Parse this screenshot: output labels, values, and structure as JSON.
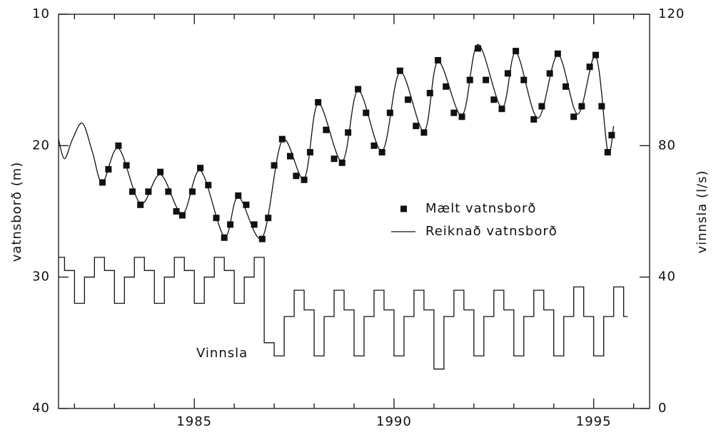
{
  "chart_data": {
    "type": "line",
    "xlim": [
      1981.6,
      1996.4
    ],
    "xticks": [
      1985,
      1990,
      1995
    ],
    "xminorticks": [
      1982,
      1983,
      1984,
      1986,
      1987,
      1988,
      1989,
      1991,
      1992,
      1993,
      1994,
      1996
    ],
    "ylim": [
      40,
      10
    ],
    "yticks": [
      10,
      20,
      30,
      40
    ],
    "y2lim": [
      0,
      120
    ],
    "y2ticks": [
      0,
      40,
      80,
      120
    ],
    "ylabel": "vatnsborð (m)",
    "y2label": "vinnsla (l/s)",
    "series": [
      {
        "name": "Mælt vatnsborð",
        "style": "markers",
        "color": "#111111",
        "x": [
          1982.7,
          1982.85,
          1983.1,
          1983.3,
          1983.45,
          1983.65,
          1983.85,
          1984.15,
          1984.35,
          1984.55,
          1984.7,
          1984.95,
          1985.15,
          1985.35,
          1985.55,
          1985.75,
          1985.9,
          1986.1,
          1986.3,
          1986.5,
          1986.7,
          1986.85,
          1987.0,
          1987.2,
          1987.4,
          1987.55,
          1987.75,
          1987.9,
          1988.1,
          1988.3,
          1988.5,
          1988.7,
          1988.85,
          1989.1,
          1989.3,
          1989.5,
          1989.7,
          1989.9,
          1990.15,
          1990.35,
          1990.55,
          1990.75,
          1990.9,
          1991.1,
          1991.3,
          1991.5,
          1991.7,
          1991.9,
          1992.1,
          1992.3,
          1992.5,
          1992.7,
          1992.85,
          1993.05,
          1993.25,
          1993.5,
          1993.7,
          1993.9,
          1994.1,
          1994.3,
          1994.5,
          1994.7,
          1994.9,
          1995.05,
          1995.2,
          1995.35,
          1995.45
        ],
        "values": [
          22.8,
          21.8,
          20.0,
          21.5,
          23.5,
          24.5,
          23.5,
          22.0,
          23.5,
          25.0,
          25.3,
          23.5,
          21.7,
          23.0,
          25.5,
          27.0,
          26.0,
          23.8,
          24.5,
          26.0,
          27.1,
          25.5,
          21.5,
          19.5,
          20.8,
          22.3,
          22.6,
          20.5,
          16.7,
          18.8,
          21.0,
          21.3,
          19.0,
          15.7,
          17.5,
          20.0,
          20.5,
          17.5,
          14.3,
          16.5,
          18.5,
          19.0,
          16.0,
          13.5,
          15.5,
          17.5,
          17.8,
          15.0,
          12.6,
          15.0,
          16.5,
          17.2,
          14.5,
          12.8,
          15.0,
          18.0,
          17.0,
          14.5,
          13.0,
          15.5,
          17.8,
          17.0,
          14.0,
          13.1,
          17.0,
          20.5,
          19.2
        ]
      },
      {
        "name": "Reiknað vatnsborð",
        "style": "line",
        "color": "#111111",
        "x": [
          1981.6,
          1981.75,
          1981.95,
          1982.2,
          1982.45,
          1982.7,
          1983.1,
          1983.65,
          1984.15,
          1984.7,
          1985.15,
          1985.75,
          1986.1,
          1986.7,
          1987.2,
          1987.75,
          1988.1,
          1988.7,
          1989.1,
          1989.7,
          1990.15,
          1990.75,
          1991.1,
          1991.7,
          1992.1,
          1992.7,
          1993.05,
          1993.6,
          1994.1,
          1994.6,
          1995.05,
          1995.35,
          1995.5
        ],
        "values": [
          19.5,
          21.0,
          19.5,
          18.3,
          20.5,
          22.8,
          20.2,
          24.4,
          22.2,
          25.2,
          21.9,
          26.9,
          23.9,
          27.0,
          19.6,
          22.5,
          16.8,
          21.2,
          15.8,
          20.4,
          14.4,
          18.9,
          13.6,
          17.7,
          12.3,
          17.1,
          12.9,
          17.9,
          13.1,
          17.6,
          13.2,
          20.4,
          18.5
        ]
      },
      {
        "name": "Vinnsla",
        "style": "step",
        "axis": "y2",
        "color": "#111111",
        "x": [
          1981.6,
          1981.75,
          1982.0,
          1982.25,
          1982.5,
          1982.75,
          1983.0,
          1983.25,
          1983.5,
          1983.75,
          1984.0,
          1984.25,
          1984.5,
          1984.75,
          1985.0,
          1985.25,
          1985.5,
          1985.75,
          1986.0,
          1986.25,
          1986.5,
          1986.75,
          1987.0,
          1987.25,
          1987.5,
          1987.75,
          1988.0,
          1988.25,
          1988.5,
          1988.75,
          1989.0,
          1989.25,
          1989.5,
          1989.75,
          1990.0,
          1990.25,
          1990.5,
          1990.75,
          1991.0,
          1991.25,
          1991.5,
          1991.75,
          1992.0,
          1992.25,
          1992.5,
          1992.75,
          1993.0,
          1993.25,
          1993.5,
          1993.75,
          1994.0,
          1994.25,
          1994.5,
          1994.75,
          1995.0,
          1995.25,
          1995.5,
          1995.75,
          1995.85
        ],
        "values": [
          46,
          42,
          32,
          40,
          46,
          42,
          32,
          40,
          46,
          42,
          32,
          40,
          46,
          42,
          32,
          40,
          46,
          42,
          32,
          40,
          46,
          20,
          16,
          28,
          36,
          30,
          16,
          28,
          36,
          30,
          16,
          28,
          36,
          30,
          16,
          28,
          36,
          30,
          12,
          28,
          36,
          30,
          16,
          28,
          36,
          30,
          16,
          28,
          36,
          30,
          16,
          28,
          37,
          28,
          16,
          28,
          37,
          28,
          28
        ]
      }
    ]
  }
}
